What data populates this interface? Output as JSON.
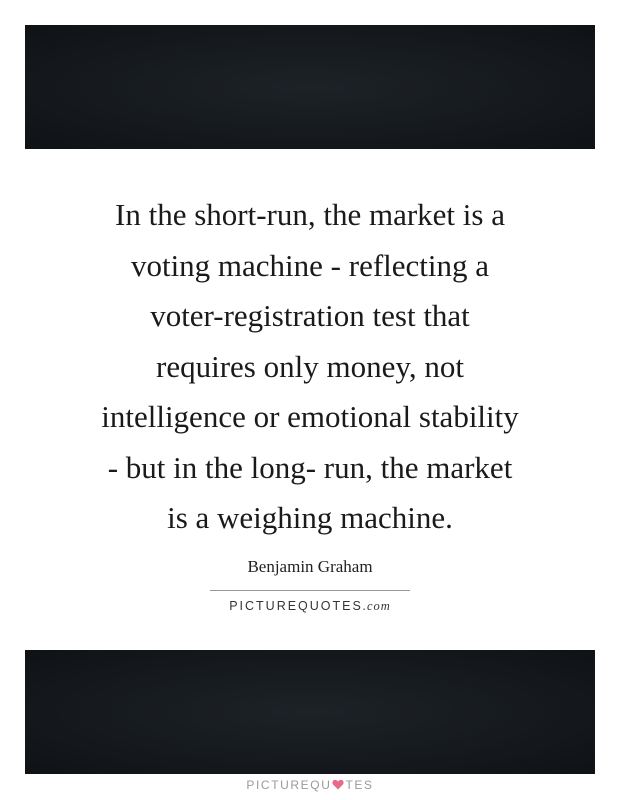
{
  "quote": {
    "lines": [
      "In the short-run, the market is a",
      "voting machine - reflecting a",
      "voter-registration test that",
      "requires only money, not",
      "intelligence or emotional stability",
      "- but in the long- run, the market",
      "is a weighing machine."
    ]
  },
  "author": "Benjamin Graham",
  "brand": {
    "word": "PICTUREQUOTES",
    "domain": ".com"
  },
  "watermark": {
    "prefix": "PICTUREQU",
    "suffix": "TES",
    "heart_color": "#e66a8a"
  },
  "colors": {
    "band": "#15191d",
    "text": "#1a1a1a"
  }
}
